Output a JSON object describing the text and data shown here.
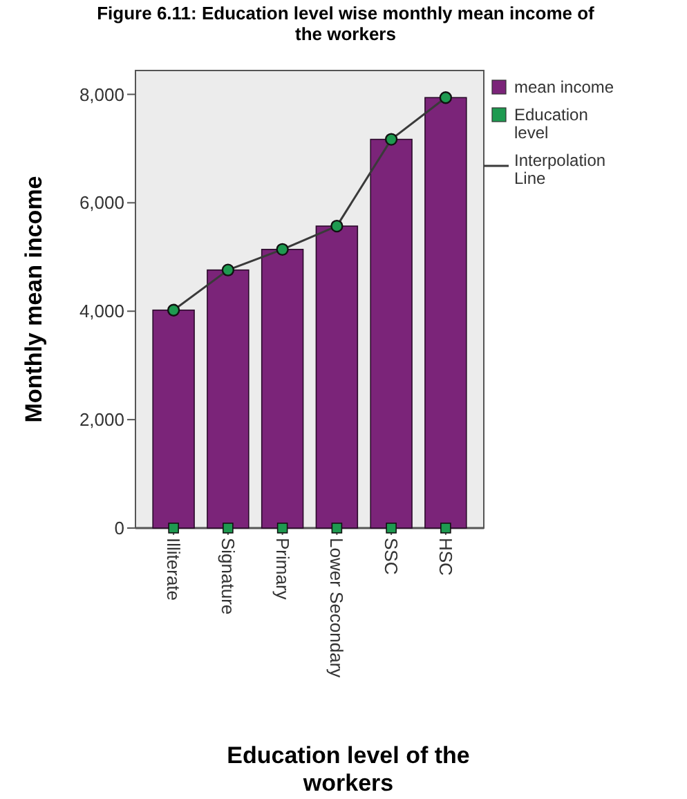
{
  "chart_data": {
    "type": "bar",
    "title": "Figure 6.11: Education level wise monthly mean income of the workers",
    "xlabel": "Education level of the workers",
    "ylabel": "Monthly mean income",
    "categories": [
      "Illiterate",
      "Signature",
      "Primary",
      "Lower Secondary",
      "SSC",
      "HSC"
    ],
    "series": [
      {
        "name": "mean income",
        "color": "#7b2479",
        "values": [
          4020,
          4760,
          5140,
          5570,
          7170,
          7940
        ]
      },
      {
        "name": "Education level",
        "type": "scatter",
        "marker": "square",
        "color": "#1e9a50",
        "values": [
          0,
          0,
          0,
          0,
          0,
          0
        ]
      },
      {
        "name": "Interpolation Line",
        "type": "line",
        "marker": "circle",
        "color": "#3a3a3a",
        "values": [
          4020,
          4760,
          5140,
          5570,
          7170,
          7940
        ]
      }
    ],
    "ylim": [
      0,
      8440
    ],
    "yticks": [
      {
        "value": 0,
        "label": "0"
      },
      {
        "value": 2000,
        "label": "2,000"
      },
      {
        "value": 4000,
        "label": "4,000"
      },
      {
        "value": 6000,
        "label": "6,000"
      },
      {
        "value": 8000,
        "label": "8,000"
      }
    ],
    "grid": false,
    "legend": "right"
  }
}
